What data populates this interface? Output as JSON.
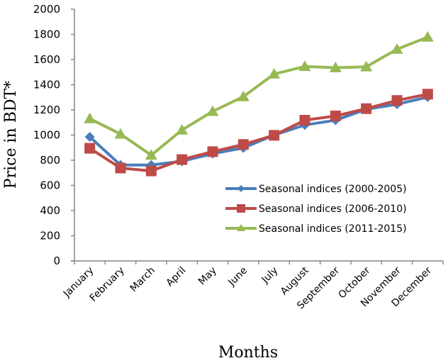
{
  "chart_data": {
    "type": "line",
    "title": "",
    "xlabel": "Months",
    "ylabel": "Price in BDT*",
    "ylim": [
      0,
      2000
    ],
    "yticks": [
      0,
      200,
      400,
      600,
      800,
      1000,
      1200,
      1400,
      1600,
      1800,
      2000
    ],
    "grid": false,
    "legend_position": "center-right",
    "categories": [
      "January",
      "February",
      "March",
      "April",
      "May",
      "June",
      "July",
      "August",
      "September",
      "October",
      "November",
      "December"
    ],
    "series": [
      {
        "name": "Seasonal indices (2000-2005)",
        "color": "#4a7ebb",
        "marker": "diamond",
        "values": [
          985,
          762,
          762,
          792,
          852,
          898,
          1000,
          1080,
          1118,
          1205,
          1245,
          1302
        ]
      },
      {
        "name": "Seasonal indices (2006-2010)",
        "color": "#be4b48",
        "marker": "square",
        "values": [
          895,
          738,
          715,
          805,
          868,
          925,
          998,
          1118,
          1152,
          1210,
          1275,
          1325
        ]
      },
      {
        "name": "Seasonal indices (2011-2015)",
        "color": "#98b954",
        "marker": "triangle",
        "values": [
          1130,
          1008,
          840,
          1040,
          1188,
          1305,
          1485,
          1545,
          1535,
          1542,
          1682,
          1778
        ]
      }
    ]
  }
}
